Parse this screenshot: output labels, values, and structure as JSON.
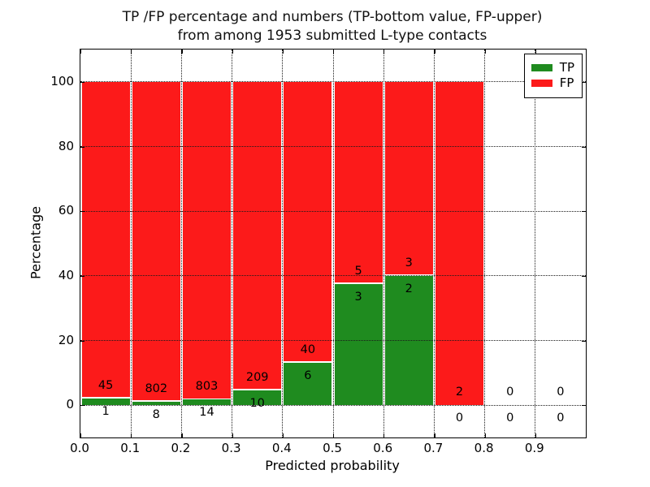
{
  "chart_data": {
    "type": "bar",
    "variant": "stacked-percentage-histogram",
    "title_lines": [
      "TP /FP percentage and numbers (TP-bottom value, FP-upper)",
      "from among 1953 submitted L-type contacts"
    ],
    "total_contacts": 1953,
    "xlabel": "Predicted probability",
    "ylabel": "Percentage",
    "xlim": [
      0.0,
      1.0
    ],
    "ylim": [
      -10,
      110
    ],
    "x_tick_labels": [
      "0.0",
      "0.1",
      "0.2",
      "0.3",
      "0.4",
      "0.5",
      "0.6",
      "0.7",
      "0.8",
      "0.9"
    ],
    "y_tick_values": [
      0,
      20,
      40,
      60,
      80,
      100
    ],
    "grid": "dotted black, drawn above bars",
    "annotation_note": "FP count printed above segment boundary, TP count below",
    "legend": {
      "position": "upper right",
      "items": [
        {
          "label": "TP",
          "color": "#1f8b1f"
        },
        {
          "label": "FP",
          "color": "#fc1a1a"
        }
      ]
    },
    "bins": [
      {
        "x_start": 0.0,
        "x_end": 0.1,
        "tp_count": 1,
        "fp_count": 45,
        "tp_pct": 2.17,
        "fp_pct": 97.83
      },
      {
        "x_start": 0.1,
        "x_end": 0.2,
        "tp_count": 8,
        "fp_count": 802,
        "tp_pct": 0.99,
        "fp_pct": 99.01
      },
      {
        "x_start": 0.2,
        "x_end": 0.3,
        "tp_count": 14,
        "fp_count": 803,
        "tp_pct": 1.71,
        "fp_pct": 98.29
      },
      {
        "x_start": 0.3,
        "x_end": 0.4,
        "tp_count": 10,
        "fp_count": 209,
        "tp_pct": 4.57,
        "fp_pct": 95.43
      },
      {
        "x_start": 0.4,
        "x_end": 0.5,
        "tp_count": 6,
        "fp_count": 40,
        "tp_pct": 13.04,
        "fp_pct": 86.96
      },
      {
        "x_start": 0.5,
        "x_end": 0.6,
        "tp_count": 3,
        "fp_count": 5,
        "tp_pct": 37.5,
        "fp_pct": 62.5
      },
      {
        "x_start": 0.6,
        "x_end": 0.7,
        "tp_count": 2,
        "fp_count": 3,
        "tp_pct": 40.0,
        "fp_pct": 60.0
      },
      {
        "x_start": 0.7,
        "x_end": 0.8,
        "tp_count": 0,
        "fp_count": 2,
        "tp_pct": 0.0,
        "fp_pct": 100.0
      },
      {
        "x_start": 0.8,
        "x_end": 0.9,
        "tp_count": 0,
        "fp_count": 0,
        "tp_pct": 0.0,
        "fp_pct": 0.0
      },
      {
        "x_start": 0.9,
        "x_end": 1.0,
        "tp_count": 0,
        "fp_count": 0,
        "tp_pct": 0.0,
        "fp_pct": 0.0
      }
    ],
    "colors": {
      "tp": "#1f8b1f",
      "fp": "#fc1a1a",
      "grid": "#1a1a1a",
      "text": "#000000",
      "bar_edge": "#ffffff"
    }
  }
}
